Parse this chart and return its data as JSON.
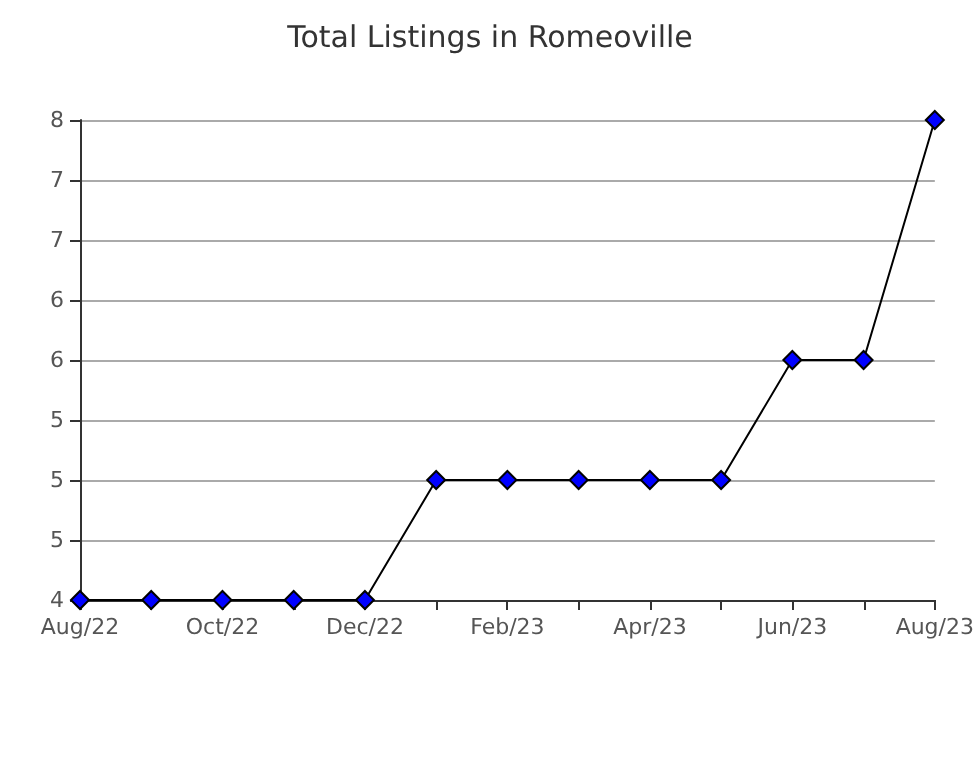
{
  "chart_data": {
    "type": "line",
    "title": "Total Listings in Romeoville",
    "categories": [
      "Aug/22",
      null,
      "Oct/22",
      null,
      "Dec/22",
      null,
      "Feb/23",
      null,
      "Apr/23",
      null,
      "Jun/23",
      null,
      "Aug/23"
    ],
    "series": [
      {
        "color": "#0000ff",
        "values": [
          4,
          4,
          4,
          4,
          4,
          5,
          5,
          5,
          5,
          5,
          6,
          6,
          8
        ]
      }
    ],
    "ylim": [
      4,
      8
    ],
    "yticks": [
      4,
      {
        "value": 4.5,
        "label": "5"
      },
      5,
      {
        "value": 5.5,
        "label": "5"
      },
      6,
      {
        "value": 6.5,
        "label": "6"
      },
      7,
      {
        "value": 7.5,
        "label": "7"
      },
      8
    ],
    "grid": "y",
    "marker": "diamond",
    "line_style": "solid"
  }
}
